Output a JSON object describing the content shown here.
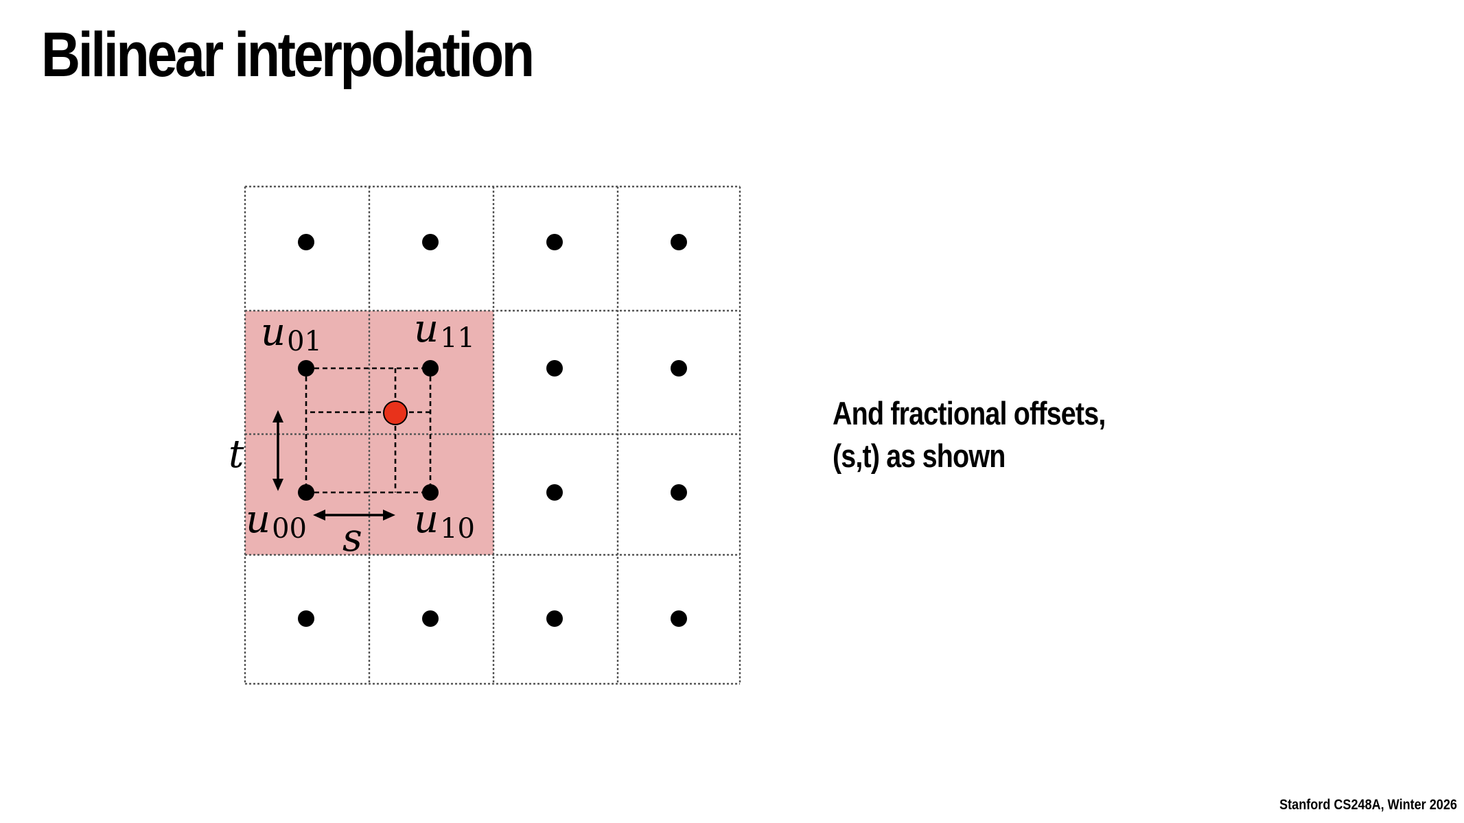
{
  "slide": {
    "title": "Bilinear interpolation",
    "caption_line1": "And fractional offsets,",
    "caption_line2": "(s,t) as shown",
    "footer": "Stanford CS248A, Winter 2026"
  },
  "diagram": {
    "grid_columns": 4,
    "grid_rows": 4,
    "highlighted_cells": "2x2 block containing u01, u11, u00, u10",
    "labels": {
      "u01": {
        "base": "u",
        "sub": "01"
      },
      "u11": {
        "base": "u",
        "sub": "11"
      },
      "u00": {
        "base": "u",
        "sub": "00"
      },
      "u10": {
        "base": "u",
        "sub": "10"
      },
      "s": "s",
      "t": "t"
    },
    "colors": {
      "highlight": "#ebb3b3",
      "sample_point": "#e8321b",
      "texel": "#000000",
      "grid_line": "#555555"
    }
  }
}
